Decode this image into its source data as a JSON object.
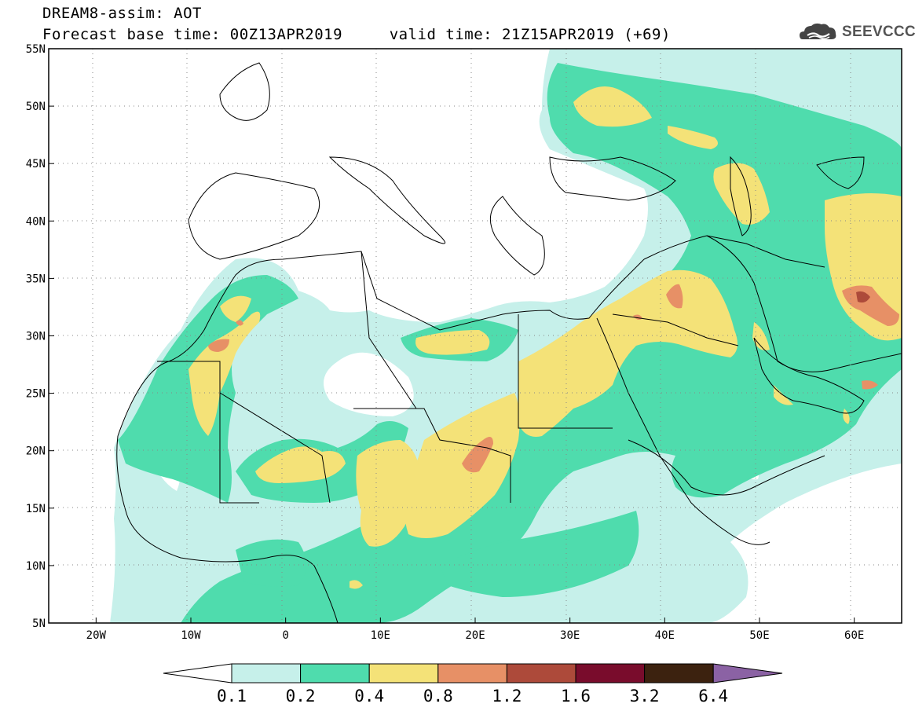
{
  "title": {
    "line1": "DREAM8-assim: AOT",
    "line2": "Forecast base time: 00Z13APR2019     valid time: 21Z15APR2019 (+69)"
  },
  "logo": {
    "text": "SEEVCCC",
    "icon": "cloud-icon"
  },
  "map": {
    "lon_range": [
      -25,
      65
    ],
    "lat_range": [
      5,
      55
    ],
    "lon_ticks": [
      "20W",
      "10W",
      "0",
      "10E",
      "20E",
      "30E",
      "40E",
      "50E",
      "60E"
    ],
    "lat_ticks": [
      "55N",
      "50N",
      "45N",
      "40N",
      "35N",
      "30N",
      "25N",
      "20N",
      "15N",
      "10N",
      "5N"
    ],
    "gridlines": "dotted"
  },
  "colorbar": {
    "labels": [
      "0.1",
      "0.2",
      "0.4",
      "0.8",
      "1.2",
      "1.6",
      "3.2",
      "6.4"
    ],
    "colors": [
      "#ffffff",
      "#c6f0ea",
      "#4fdcad",
      "#f4e278",
      "#e79066",
      "#ad4a3a",
      "#790c2c",
      "#3c220f",
      "#8b62a4"
    ]
  }
}
